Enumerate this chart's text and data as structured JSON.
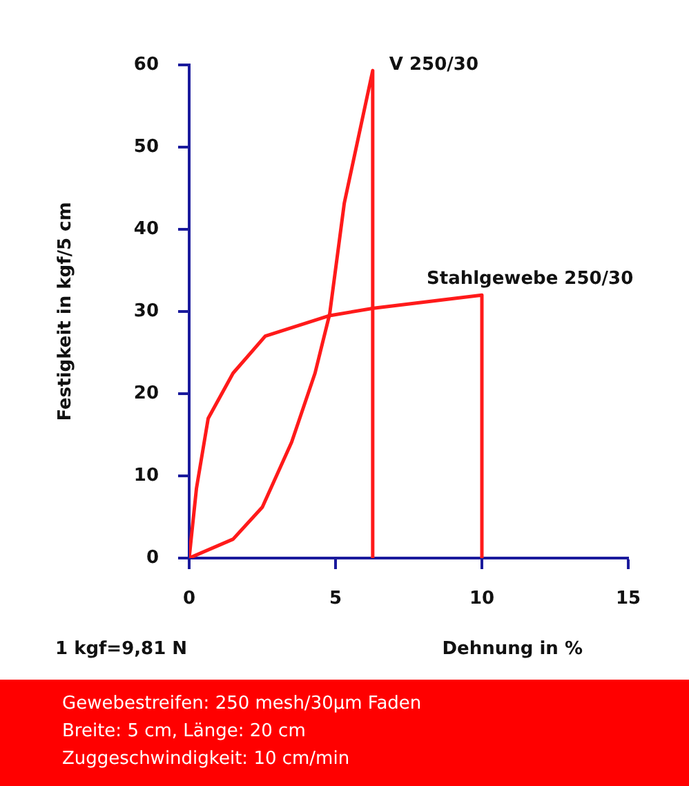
{
  "chart_data": {
    "type": "line",
    "xlabel": "Dehnung in %",
    "ylabel": "Festigkeit in kgf/5 cm",
    "xlim": [
      0,
      15
    ],
    "xticks": [
      0,
      5,
      10,
      15
    ],
    "ylim": [
      0,
      60
    ],
    "yticks": [
      0,
      10,
      20,
      30,
      40,
      50,
      60
    ],
    "grid": false,
    "legend": false,
    "marker": "none",
    "line_style": "solid",
    "series": [
      {
        "name": "V 250/30",
        "color": "#ff1a1a",
        "x": [
          0,
          1.5,
          2.5,
          3.5,
          4.3,
          4.8,
          5.3,
          6.27,
          6.27
        ],
        "values": [
          0,
          2.3,
          6.2,
          14.1,
          22.5,
          29.7,
          43.2,
          59.3,
          0
        ]
      },
      {
        "name": "Stahlgewebe 250/30",
        "color": "#ff1a1a",
        "x": [
          0,
          0.25,
          0.65,
          1.5,
          2.6,
          4.8,
          6.3,
          10,
          10
        ],
        "values": [
          0,
          8.5,
          17,
          22.5,
          27,
          29.5,
          30.4,
          32,
          0
        ]
      }
    ],
    "annotations": [
      "1 kgf=9,81 N",
      "Gewebestreifen: 250 mesh/30µm Faden",
      "Breite: 5 cm, Länge: 20 cm",
      "Zuggeschwindigkeit: 10 cm/min"
    ]
  }
}
